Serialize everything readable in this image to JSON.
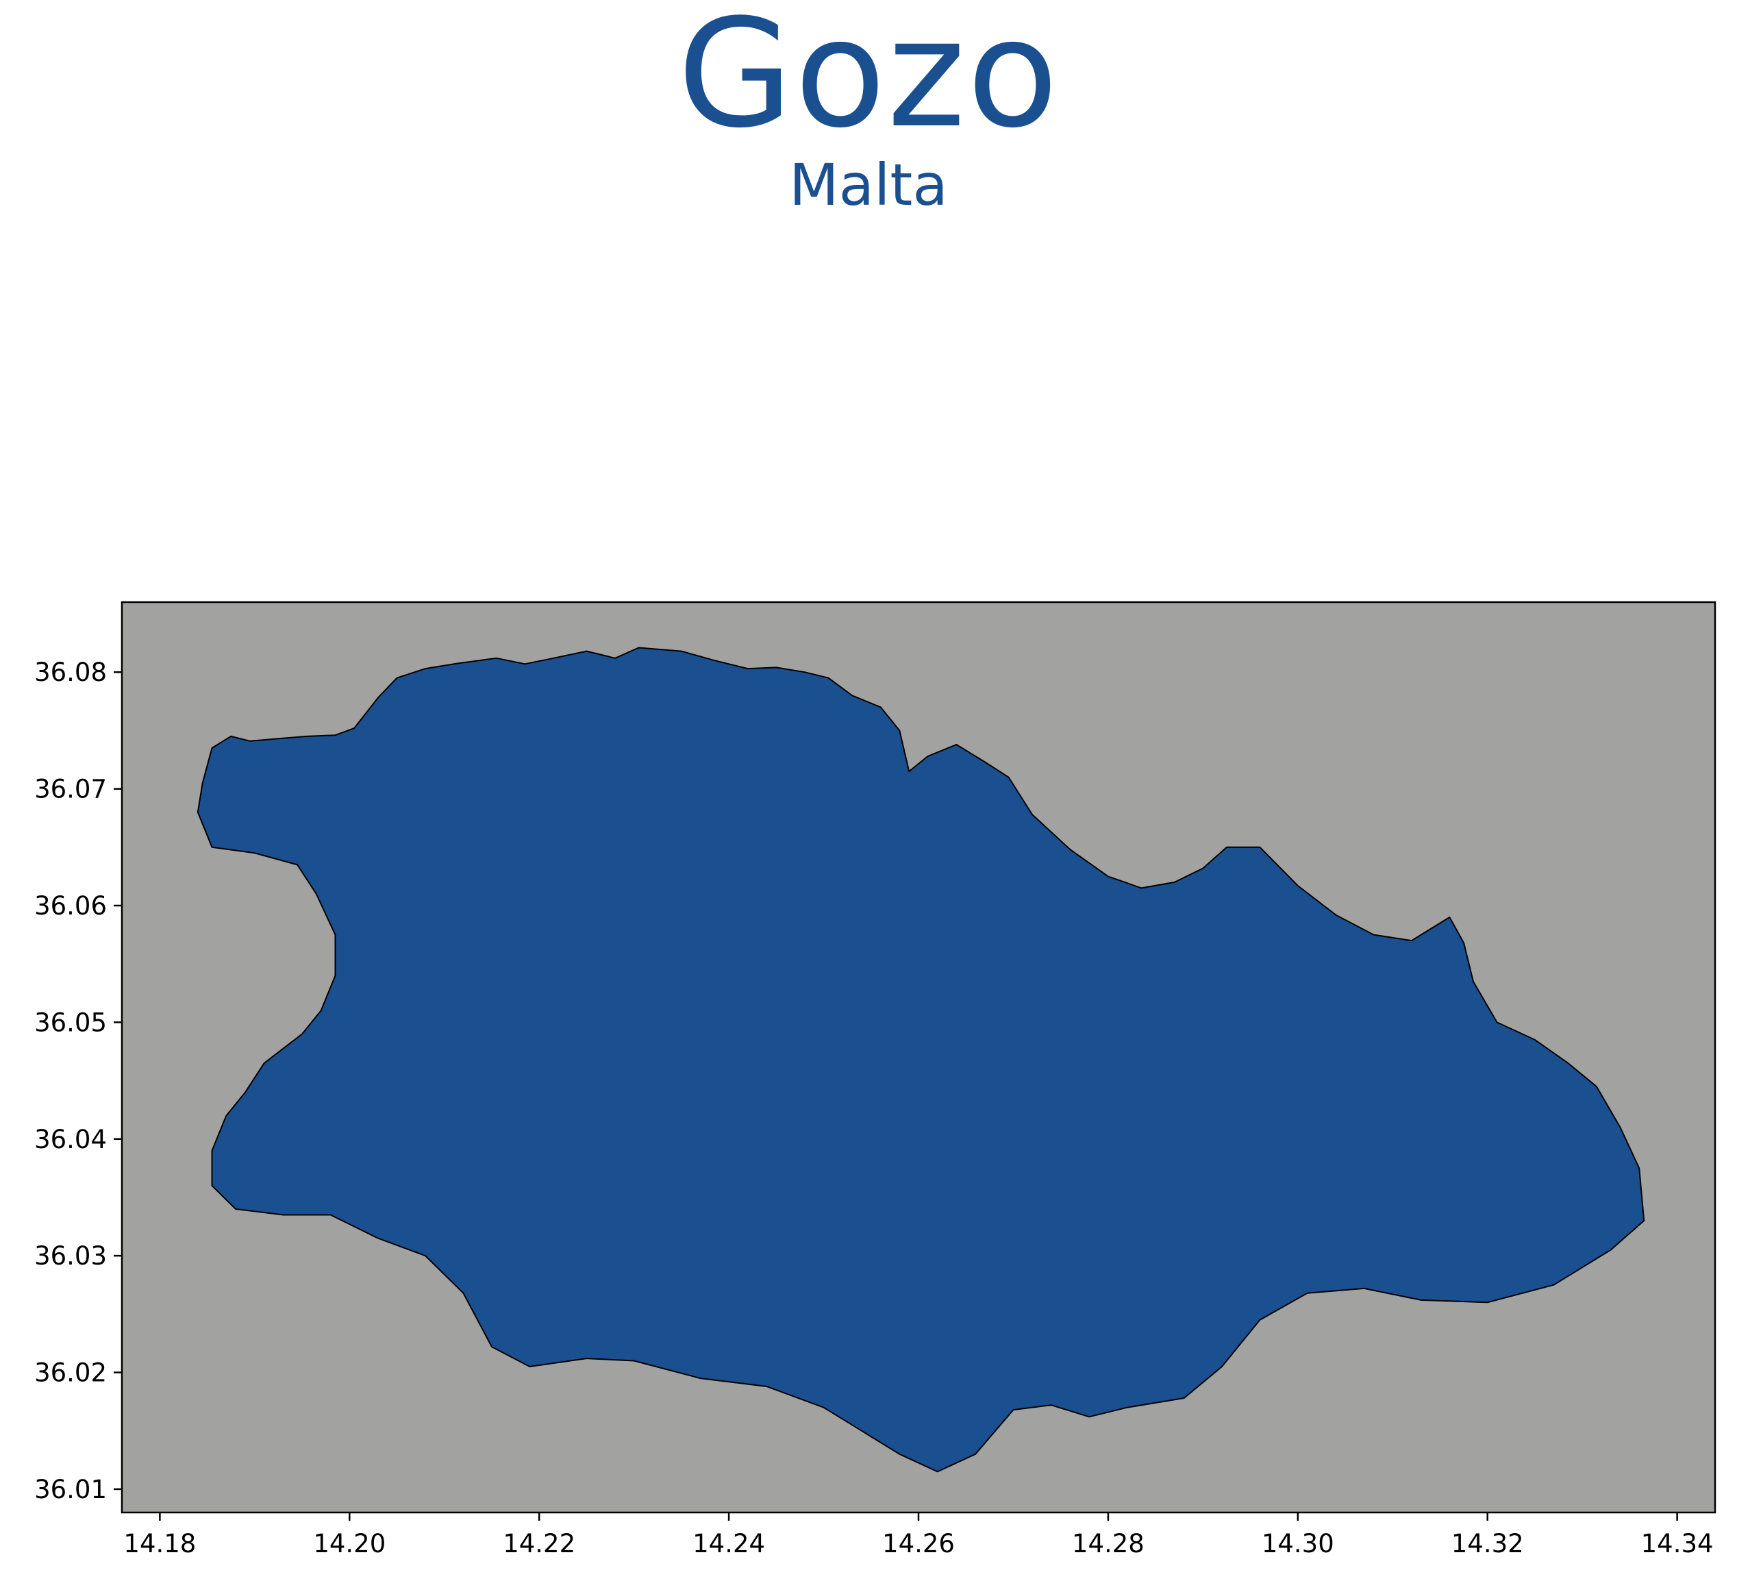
{
  "title": "Gozo",
  "subtitle": "Malta",
  "colors": {
    "title": "#1b5090",
    "land": "#1b5090",
    "sea": "#a2a2a1",
    "outline": "#000000"
  },
  "map": {
    "region": "Gozo",
    "country": "Malta",
    "xlim": [
      14.176,
      14.344
    ],
    "ylim": [
      36.008,
      36.086
    ],
    "x_ticks": [
      "14.18",
      "14.20",
      "14.22",
      "14.24",
      "14.26",
      "14.28",
      "14.30",
      "14.32",
      "14.34"
    ],
    "y_ticks": [
      "36.01",
      "36.02",
      "36.03",
      "36.04",
      "36.05",
      "36.06",
      "36.07",
      "36.08"
    ],
    "outline_lonlat": [
      [
        14.1855,
        36.0735
      ],
      [
        14.1875,
        36.0745
      ],
      [
        14.1895,
        36.0741
      ],
      [
        14.1925,
        36.0743
      ],
      [
        14.1955,
        36.0745
      ],
      [
        14.1985,
        36.0746
      ],
      [
        14.2005,
        36.0752
      ],
      [
        14.203,
        36.0778
      ],
      [
        14.205,
        36.0795
      ],
      [
        14.208,
        36.0803
      ],
      [
        14.211,
        36.0807
      ],
      [
        14.2155,
        36.0812
      ],
      [
        14.2185,
        36.0807
      ],
      [
        14.2215,
        36.0812
      ],
      [
        14.225,
        36.0818
      ],
      [
        14.228,
        36.0812
      ],
      [
        14.2305,
        36.0821
      ],
      [
        14.235,
        36.0818
      ],
      [
        14.2385,
        36.081
      ],
      [
        14.242,
        36.0803
      ],
      [
        14.245,
        36.0804
      ],
      [
        14.248,
        36.08
      ],
      [
        14.2505,
        36.0795
      ],
      [
        14.253,
        36.078
      ],
      [
        14.256,
        36.077
      ],
      [
        14.258,
        36.075
      ],
      [
        14.259,
        36.0715
      ],
      [
        14.261,
        36.0728
      ],
      [
        14.264,
        36.0738
      ],
      [
        14.267,
        36.0723
      ],
      [
        14.2695,
        36.071
      ],
      [
        14.272,
        36.0678
      ],
      [
        14.276,
        36.0648
      ],
      [
        14.28,
        36.0625
      ],
      [
        14.2835,
        36.0615
      ],
      [
        14.287,
        36.062
      ],
      [
        14.29,
        36.0632
      ],
      [
        14.2925,
        36.065
      ],
      [
        14.296,
        36.065
      ],
      [
        14.3,
        36.0617
      ],
      [
        14.304,
        36.0592
      ],
      [
        14.308,
        36.0575
      ],
      [
        14.312,
        36.057
      ],
      [
        14.316,
        36.059
      ],
      [
        14.3175,
        36.0568
      ],
      [
        14.3185,
        36.0535
      ],
      [
        14.321,
        36.05
      ],
      [
        14.325,
        36.0485
      ],
      [
        14.3285,
        36.0465
      ],
      [
        14.3315,
        36.0445
      ],
      [
        14.334,
        36.041
      ],
      [
        14.336,
        36.0375
      ],
      [
        14.3365,
        36.033
      ],
      [
        14.333,
        36.0305
      ],
      [
        14.327,
        36.0275
      ],
      [
        14.32,
        36.026
      ],
      [
        14.313,
        36.0262
      ],
      [
        14.307,
        36.0272
      ],
      [
        14.301,
        36.0268
      ],
      [
        14.296,
        36.0245
      ],
      [
        14.292,
        36.0205
      ],
      [
        14.288,
        36.0178
      ],
      [
        14.282,
        36.017
      ],
      [
        14.278,
        36.0162
      ],
      [
        14.274,
        36.0172
      ],
      [
        14.27,
        36.0168
      ],
      [
        14.266,
        36.013
      ],
      [
        14.262,
        36.0115
      ],
      [
        14.258,
        36.013
      ],
      [
        14.254,
        36.015
      ],
      [
        14.25,
        36.017
      ],
      [
        14.244,
        36.0188
      ],
      [
        14.237,
        36.0195
      ],
      [
        14.23,
        36.021
      ],
      [
        14.225,
        36.0212
      ],
      [
        14.219,
        36.0205
      ],
      [
        14.215,
        36.0222
      ],
      [
        14.212,
        36.0268
      ],
      [
        14.208,
        36.03
      ],
      [
        14.203,
        36.0315
      ],
      [
        14.198,
        36.0335
      ],
      [
        14.193,
        36.0335
      ],
      [
        14.188,
        36.034
      ],
      [
        14.1855,
        36.036
      ],
      [
        14.1855,
        36.039
      ],
      [
        14.187,
        36.042
      ],
      [
        14.189,
        36.044
      ],
      [
        14.191,
        36.0465
      ],
      [
        14.195,
        36.049
      ],
      [
        14.197,
        36.051
      ],
      [
        14.1985,
        36.054
      ],
      [
        14.1985,
        36.0575
      ],
      [
        14.1965,
        36.061
      ],
      [
        14.1945,
        36.0635
      ],
      [
        14.19,
        36.0645
      ],
      [
        14.1855,
        36.065
      ],
      [
        14.184,
        36.068
      ],
      [
        14.1845,
        36.0705
      ],
      [
        14.1855,
        36.0735
      ]
    ]
  }
}
